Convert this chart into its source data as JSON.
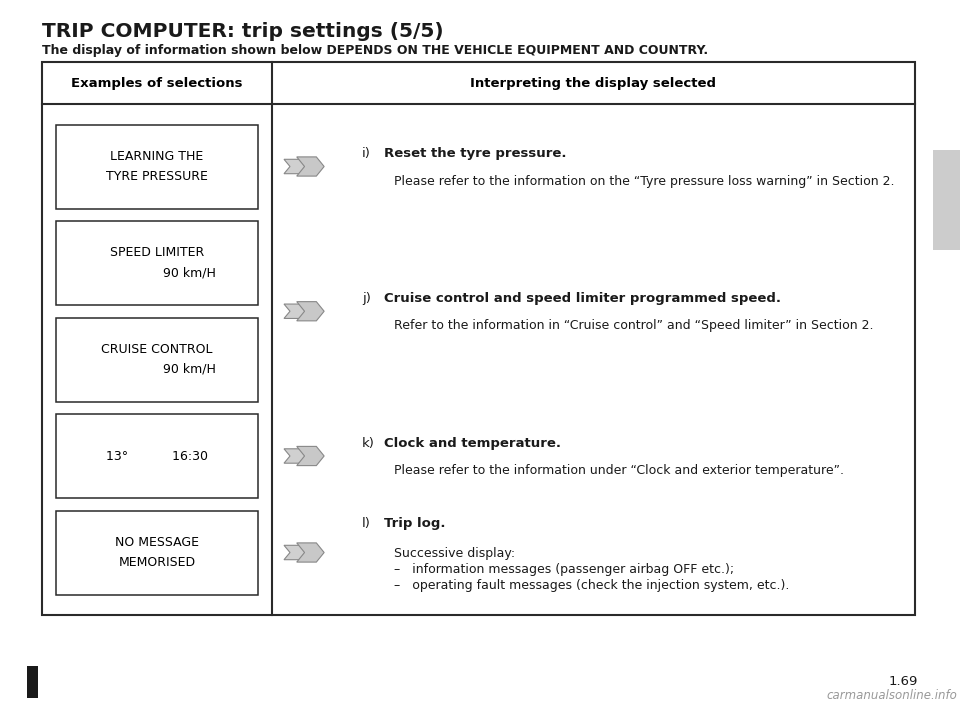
{
  "title": "TRIP COMPUTER: trip settings (5/5)",
  "subtitle": "The display of information shown below DEPENDS ON THE VEHICLE EQUIPMENT AND COUNTRY.",
  "col1_header": "Examples of selections",
  "col2_header": "Interpreting the display selected",
  "page_number": "1.69",
  "watermark": "carmanualsonline.info",
  "bg_color": "#ffffff",
  "selections": [
    "LEARNING THE\nTYRE PRESSURE",
    "SPEED LIMITER\n                90 km/H",
    "CRUISE CONTROL\n                90 km/H",
    "13°           16:30",
    "NO MESSAGE\nMEMORISED"
  ],
  "entry_i_bold": "Reset the tyre pressure.",
  "entry_i_normal": "Please refer to the information on the “Tyre pressure loss warning” in Section 2.",
  "entry_j_bold": "Cruise control and speed limiter programmed speed.",
  "entry_j_normal": "Refer to the information in “Cruise control” and “Speed limiter” in Section 2.",
  "entry_k_bold": "Clock and temperature.",
  "entry_k_normal": "Please refer to the information under “Clock and exterior temperature”.",
  "entry_l_bold": "Trip log.",
  "entry_l_line1": "Successive display:",
  "entry_l_line2": "–   information messages (passenger airbag OFF etc.);",
  "entry_l_line3": "–   operating fault messages (check the injection system, etc.).",
  "sidebar_color": "#cccccc"
}
